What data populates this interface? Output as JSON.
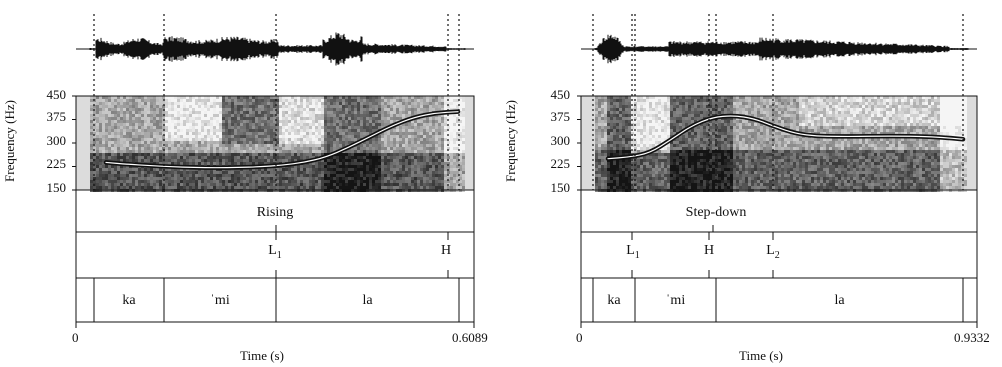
{
  "y_axis_label": "Frequency (Hz)",
  "x_axis_label": "Time (s)",
  "y_ticks": [
    "450",
    "375",
    "300",
    "225",
    "150"
  ],
  "panels": [
    {
      "id": "rising",
      "contour_label": "Rising",
      "x_start": "0",
      "x_end": "0.6089",
      "tones": [
        {
          "label": "L",
          "sub": "1"
        },
        {
          "label": "H",
          "sub": ""
        }
      ],
      "syllables": [
        "ka",
        "ˈmi",
        "la"
      ],
      "pitch_hz": [
        238,
        232,
        228,
        224,
        222,
        221,
        222,
        224,
        229,
        238,
        255,
        285,
        320,
        355,
        382,
        396,
        400
      ]
    },
    {
      "id": "stepdown",
      "contour_label": "Step-down",
      "x_start": "0",
      "x_end": "0.9332",
      "tones": [
        {
          "label": "L",
          "sub": "1"
        },
        {
          "label": "H",
          "sub": ""
        },
        {
          "label": "L",
          "sub": "2"
        }
      ],
      "syllables": [
        "ka",
        "ˈmi",
        "la"
      ],
      "pitch_hz": [
        250,
        255,
        268,
        310,
        355,
        382,
        388,
        378,
        352,
        330,
        322,
        321,
        321,
        322,
        322,
        321,
        318,
        312
      ]
    }
  ],
  "colors": {
    "ink": "#111111",
    "spectro_dark": "#1a1a1a",
    "spectro_light": "#f2f2f2"
  }
}
